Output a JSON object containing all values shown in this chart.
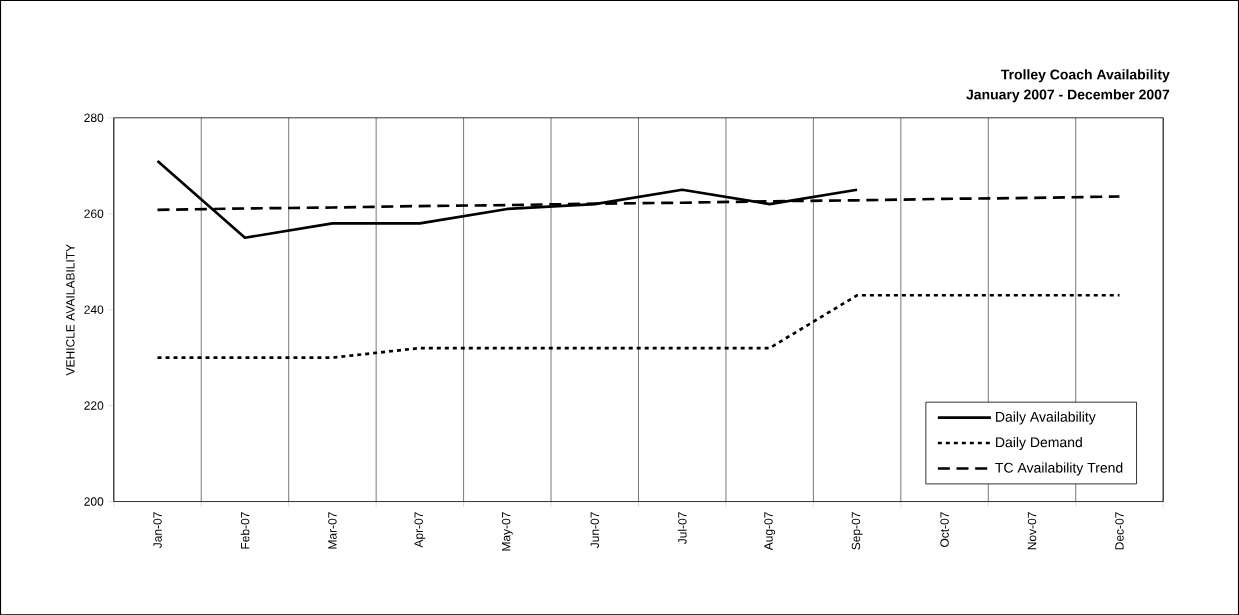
{
  "chart_data": {
    "type": "line",
    "title": "Trolley Coach Availability",
    "subtitle": "January 2007 - December 2007",
    "ylabel": "VEHICLE AVAILABILITY",
    "categories": [
      "Jan-07",
      "Feb-07",
      "Mar-07",
      "Apr-07",
      "May-07",
      "Jun-07",
      "Jul-07",
      "Aug-07",
      "Sep-07",
      "Oct-07",
      "Nov-07",
      "Dec-07"
    ],
    "series": [
      {
        "name": "Daily Availability",
        "color": "#000000",
        "line_style": "solid",
        "values": [
          271,
          255,
          258,
          258,
          261,
          262,
          265,
          262,
          265,
          null,
          null,
          null
        ]
      },
      {
        "name": "Daily Demand",
        "color": "#000000",
        "line_style": "dotted",
        "values": [
          230,
          230,
          230,
          232,
          232,
          232,
          232,
          232,
          243,
          243,
          243,
          243
        ]
      },
      {
        "name": "TC Availability Trend",
        "color": "#000000",
        "line_style": "dashed",
        "values": [
          260.8,
          261.1,
          261.3,
          261.6,
          261.8,
          262.1,
          262.3,
          262.6,
          262.8,
          263.1,
          263.3,
          263.6
        ]
      }
    ],
    "ylim": [
      200,
      280
    ],
    "yticks": [
      200,
      220,
      240,
      260,
      280
    ],
    "grid": true,
    "legend": "bottom right",
    "marker": "none"
  }
}
